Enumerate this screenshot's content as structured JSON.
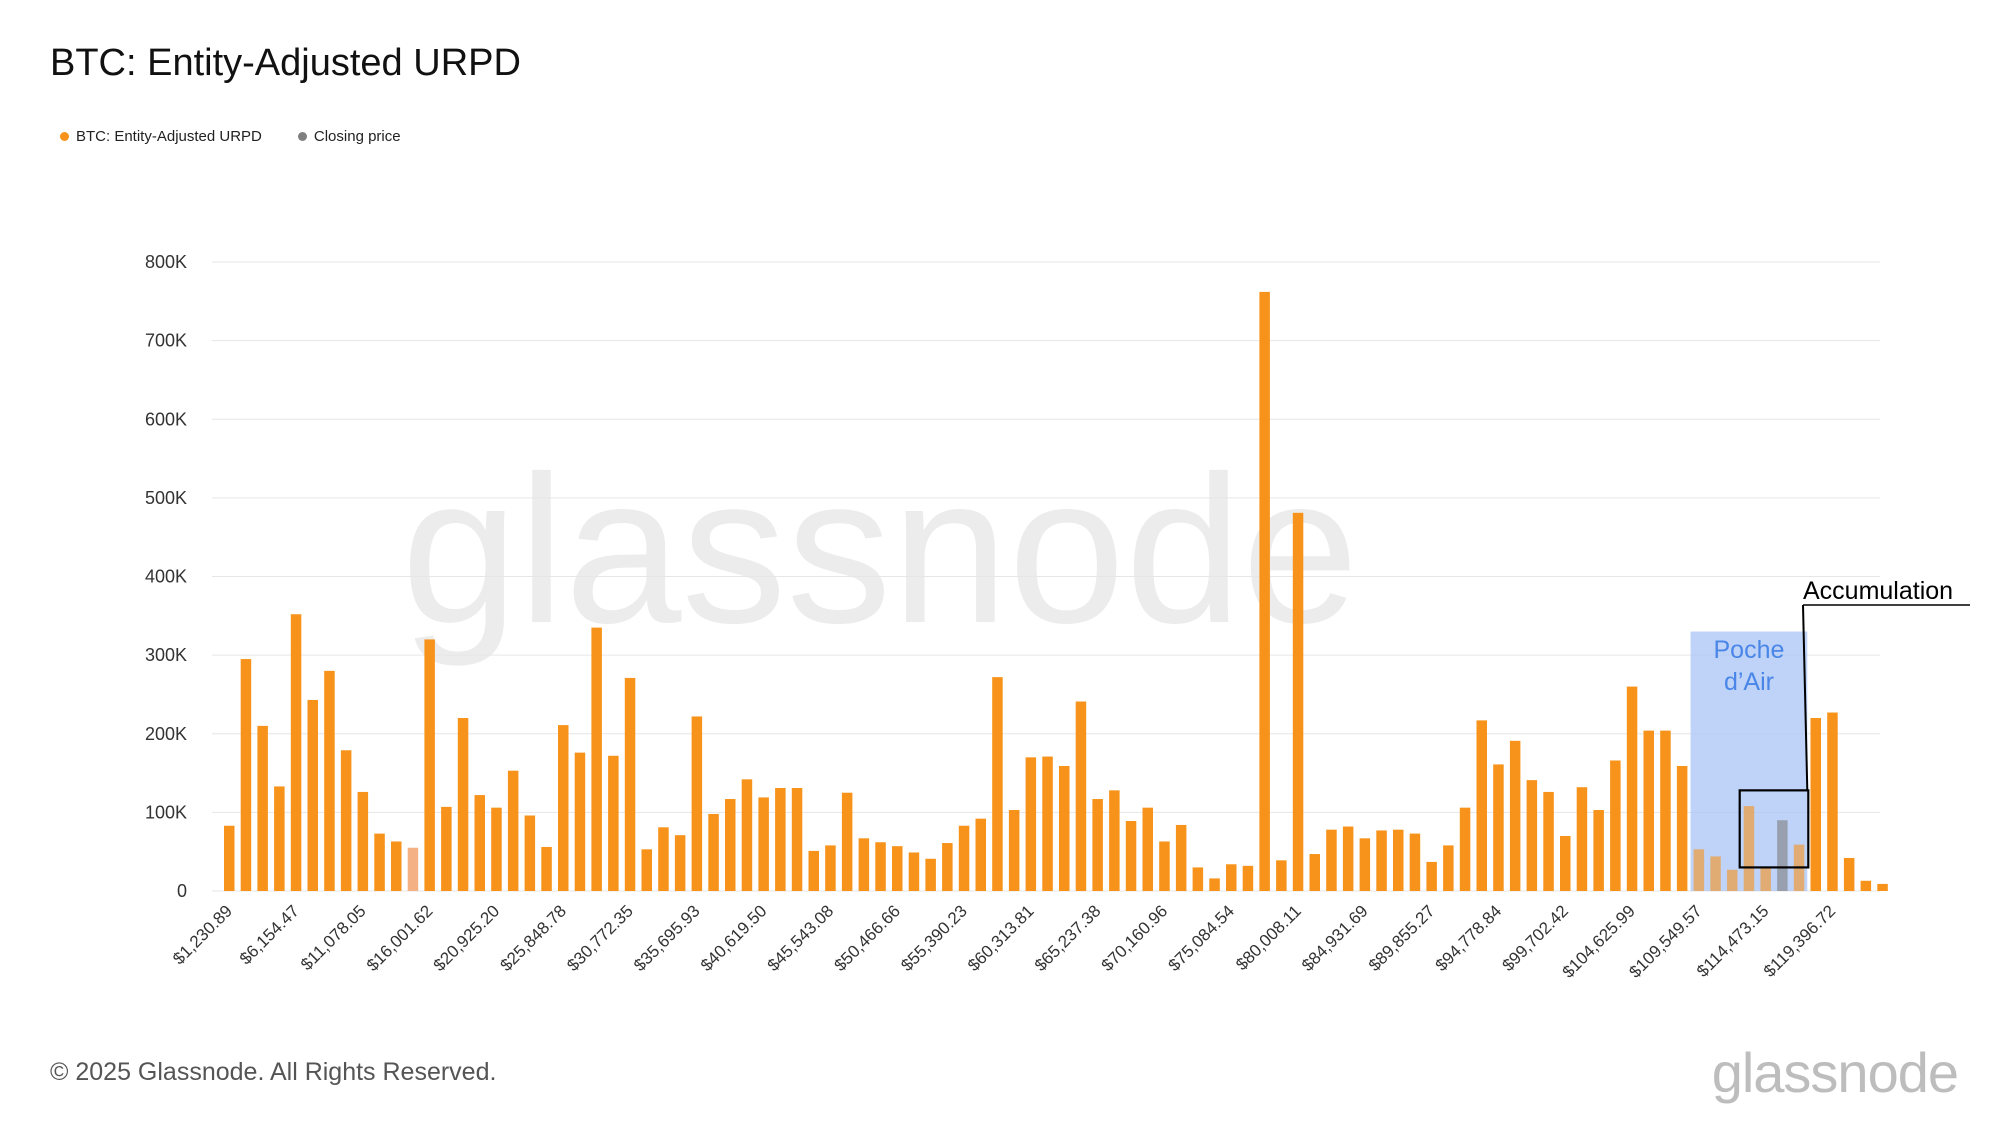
{
  "chart_data": {
    "type": "bar",
    "title": "BTC: Entity-Adjusted URPD",
    "legend": [
      {
        "label": "BTC: Entity-Adjusted URPD",
        "color": "#f7931a"
      },
      {
        "label": "Closing price",
        "color": "#7f7f7f"
      }
    ],
    "legend_position": "top-left",
    "y_ticks": [
      "0",
      "100K",
      "200K",
      "300K",
      "400K",
      "500K",
      "600K",
      "700K",
      "800K"
    ],
    "ylim": [
      0,
      800000
    ],
    "grid": true,
    "x_tick_labels": [
      "$1,230.89",
      "$6,154.47",
      "$11,078.05",
      "$16,001.62",
      "$20,925.20",
      "$25,848.78",
      "$30,772.35",
      "$35,695.93",
      "$40,619.50",
      "$45,543.08",
      "$50,466.66",
      "$55,390.23",
      "$60,313.81",
      "$65,237.38",
      "$70,160.96",
      "$75,084.54",
      "$80,008.11",
      "$84,931.69",
      "$89,855.27",
      "$94,778.84",
      "$99,702.42",
      "$104,625.99",
      "$109,549.57",
      "$114,473.15",
      "$119,396.72"
    ],
    "x_tick_every": 4,
    "values": [
      83000,
      295000,
      210000,
      133000,
      352000,
      243000,
      280000,
      179000,
      126000,
      73000,
      63000,
      55000,
      320000,
      107000,
      220000,
      122000,
      106000,
      153000,
      96000,
      56000,
      211000,
      176000,
      335000,
      172000,
      271000,
      53000,
      81000,
      71000,
      222000,
      98000,
      117000,
      142000,
      119000,
      131000,
      131000,
      51000,
      58000,
      125000,
      67000,
      62000,
      57000,
      49000,
      41000,
      61000,
      83000,
      92000,
      272000,
      103000,
      170000,
      171000,
      159000,
      241000,
      117000,
      128000,
      89000,
      106000,
      63000,
      84000,
      30000,
      16000,
      34000,
      32000,
      762000,
      39000,
      481000,
      47000,
      78000,
      82000,
      67000,
      77000,
      78000,
      73000,
      37000,
      58000,
      106000,
      217000,
      161000,
      191000,
      141000,
      126000,
      70000,
      132000,
      103000,
      166000,
      260000,
      204000,
      204000,
      159000,
      53000,
      44000,
      27000,
      108000,
      30000,
      90000,
      59000,
      220000,
      227000,
      42000,
      13000,
      9000
    ],
    "highlight_color": "#f4b183",
    "highlighted_indices": [
      11
    ],
    "closing_price_index": 93,
    "annotations": [
      {
        "name": "poche-air",
        "label_lines": [
          "Poche",
          "d’Air"
        ],
        "from_index": 88,
        "to_index": 94,
        "ylim": [
          0,
          330000
        ],
        "fill": "#aec8f5",
        "text_color": "#4a86e8"
      },
      {
        "name": "accumulation",
        "label": "Accumulation",
        "from_index": 91,
        "to_index": 94,
        "ylim": [
          30000,
          128000
        ],
        "color": "#000000"
      }
    ]
  },
  "footer": {
    "copyright": "© 2025 Glassnode. All Rights Reserved.",
    "logo": "glassnode"
  },
  "watermark": "glassnode"
}
